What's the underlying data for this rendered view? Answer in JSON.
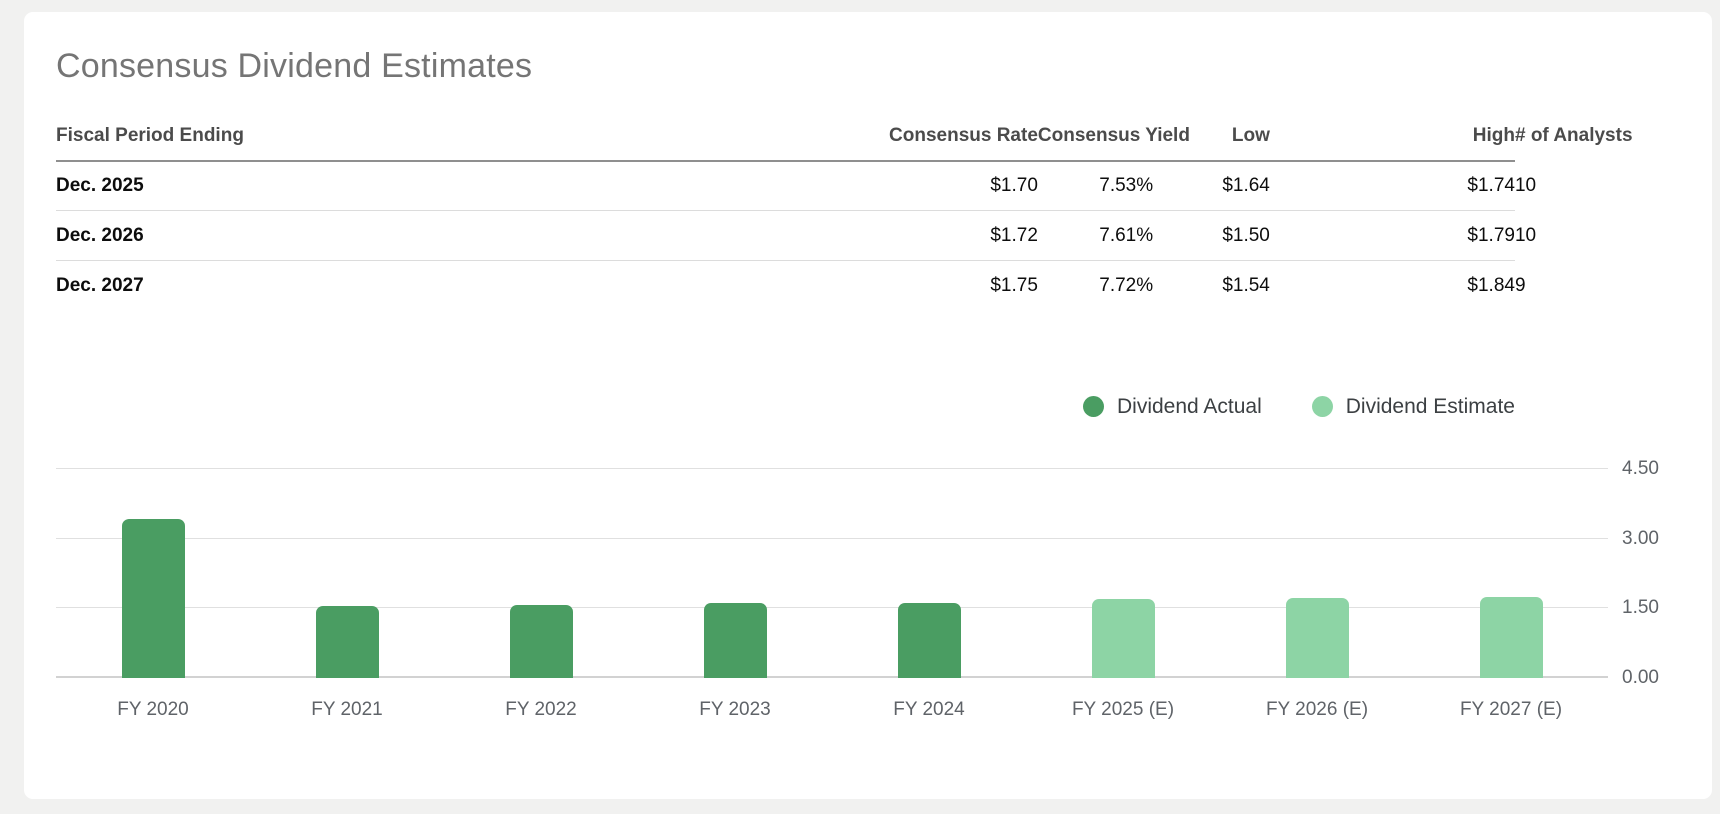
{
  "page": {
    "background": "#f1f1f0"
  },
  "card": {
    "title": "Consensus Dividend Estimates"
  },
  "table": {
    "columns": [
      {
        "label": "Fiscal Period Ending",
        "align": "left"
      },
      {
        "label": "Consensus Rate",
        "align": "right"
      },
      {
        "label": "Consensus Yield",
        "align": "right"
      },
      {
        "label": "Low",
        "align": "right"
      },
      {
        "label": "High",
        "align": "right"
      },
      {
        "label": "# of Analysts",
        "align": "right"
      }
    ],
    "rows": [
      [
        "Dec. 2025",
        "$1.70",
        "7.53%",
        "$1.64",
        "$1.74",
        "10"
      ],
      [
        "Dec. 2026",
        "$1.72",
        "7.61%",
        "$1.50",
        "$1.79",
        "10"
      ],
      [
        "Dec. 2027",
        "$1.75",
        "7.72%",
        "$1.54",
        "$1.84",
        "9"
      ]
    ]
  },
  "legend": {
    "items": [
      {
        "label": "Dividend Actual",
        "color": "#4a9d62"
      },
      {
        "label": "Dividend Estimate",
        "color": "#8dd4a5"
      }
    ]
  },
  "chart_data": {
    "type": "bar",
    "title": "",
    "xlabel": "",
    "ylabel": "",
    "categories": [
      "FY 2020",
      "FY 2021",
      "FY 2022",
      "FY 2023",
      "FY 2024",
      "FY 2025 (E)",
      "FY 2026 (E)",
      "FY 2027 (E)"
    ],
    "series": [
      {
        "name": "Dividend Actual",
        "color": "#4a9d62",
        "values": [
          3.42,
          1.56,
          1.58,
          1.62,
          1.62,
          null,
          null,
          null
        ]
      },
      {
        "name": "Dividend Estimate",
        "color": "#8dd4a5",
        "values": [
          null,
          null,
          null,
          null,
          null,
          1.7,
          1.72,
          1.75
        ]
      }
    ],
    "ylim": [
      0,
      4.5
    ],
    "yticks": [
      "0.00",
      "1.50",
      "3.00",
      "4.50"
    ],
    "grid": true,
    "legend_position": "top-right"
  }
}
